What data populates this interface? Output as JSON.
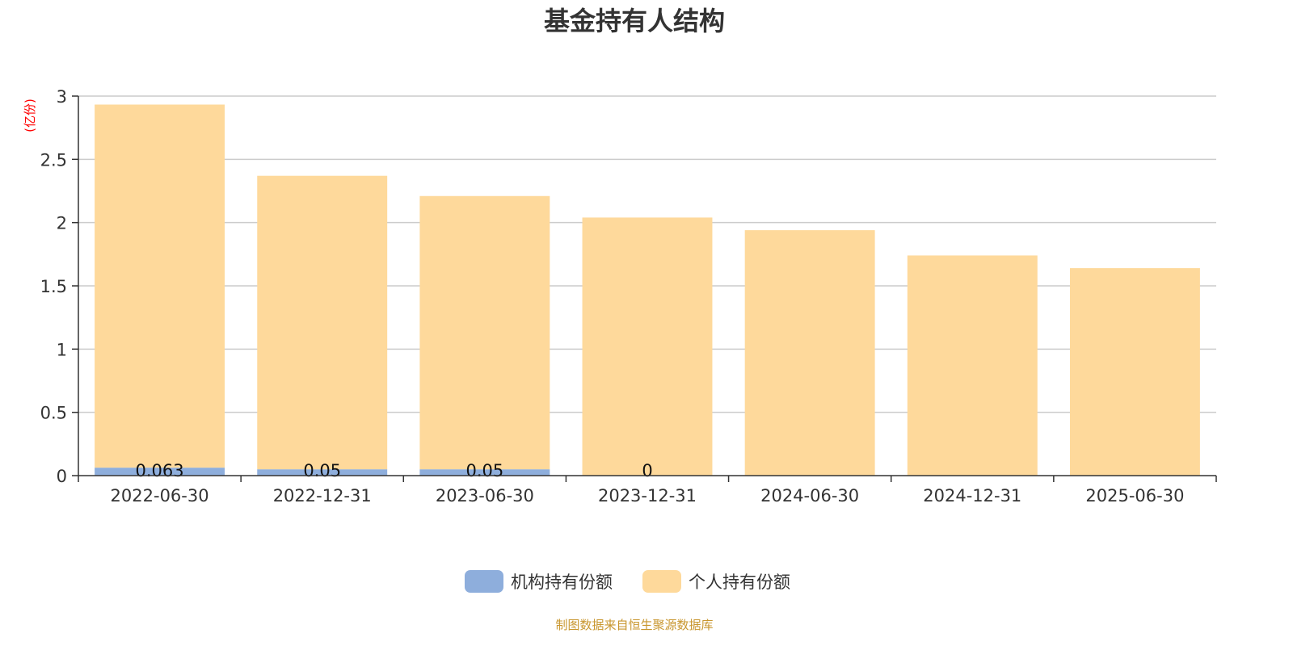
{
  "chart_data": {
    "type": "bar",
    "stacked": true,
    "title": "基金持有人结构",
    "ylabel": "(亿份)",
    "xlabel": "",
    "ylim": [
      0,
      3
    ],
    "yticks": [
      0,
      0.5,
      1,
      1.5,
      2,
      2.5,
      3
    ],
    "ytick_labels": [
      "0",
      "0.5",
      "1",
      "1.5",
      "2",
      "2.5",
      "3"
    ],
    "grid": true,
    "legend_position": "bottom",
    "categories": [
      "2022-06-30",
      "2022-12-31",
      "2023-06-30",
      "2023-12-31",
      "2024-06-30",
      "2024-12-31",
      "2025-06-30"
    ],
    "series": [
      {
        "name": "机构持有份额",
        "color": "#8eaedc",
        "values": [
          0.063,
          0.05,
          0.05,
          0,
          null,
          null,
          null
        ],
        "labels": [
          "0.063",
          "0.05",
          "0.05",
          "0",
          "",
          "",
          ""
        ]
      },
      {
        "name": "个人持有份额",
        "color": "#fed99b",
        "values": [
          2.87,
          2.32,
          2.16,
          2.04,
          1.94,
          1.74,
          1.64
        ]
      }
    ]
  },
  "source_note": "制图数据来自恒生聚源数据库",
  "colors": {
    "ylabel": "#ff0000",
    "source": "#c8962e",
    "grid": "#cccccc",
    "axis": "#333333"
  }
}
